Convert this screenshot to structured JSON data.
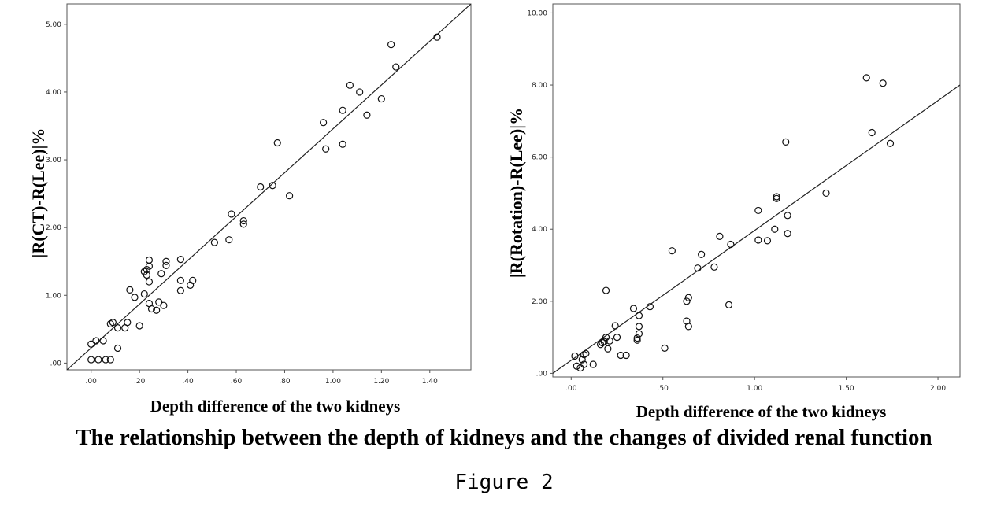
{
  "caption": "The relationship between the depth of kidneys and the changes of divided renal function",
  "figure_label": "Figure 2",
  "chart_data": [
    {
      "type": "scatter",
      "xlabel": "Depth difference of the two kidneys",
      "ylabel": "|R(CT)-R(Lee)|%",
      "xlim": [
        -0.1,
        1.57
      ],
      "ylim": [
        -0.1,
        5.3
      ],
      "xticks": [
        0,
        0.2,
        0.4,
        0.6,
        0.8,
        1.0,
        1.2,
        1.4
      ],
      "xtick_labels": [
        ".00",
        ".20",
        ".40",
        ".60",
        ".80",
        "1.00",
        "1.20",
        "1.40"
      ],
      "yticks": [
        0,
        1,
        2,
        3,
        4,
        5
      ],
      "ytick_labels": [
        ".00",
        "1.00",
        "2.00",
        "3.00",
        "4.00",
        "5.00"
      ],
      "grid": false,
      "fit_line": {
        "x1": -0.1,
        "y1": -0.1,
        "x2": 1.57,
        "y2": 5.3
      },
      "points": [
        [
          0.0,
          0.05
        ],
        [
          0.03,
          0.05
        ],
        [
          0.06,
          0.05
        ],
        [
          0.08,
          0.05
        ],
        [
          0.0,
          0.28
        ],
        [
          0.02,
          0.33
        ],
        [
          0.05,
          0.33
        ],
        [
          0.08,
          0.58
        ],
        [
          0.09,
          0.6
        ],
        [
          0.11,
          0.22
        ],
        [
          0.11,
          0.52
        ],
        [
          0.14,
          0.52
        ],
        [
          0.15,
          0.6
        ],
        [
          0.16,
          1.08
        ],
        [
          0.18,
          0.97
        ],
        [
          0.2,
          0.55
        ],
        [
          0.22,
          1.02
        ],
        [
          0.22,
          1.35
        ],
        [
          0.23,
          1.38
        ],
        [
          0.23,
          1.3
        ],
        [
          0.24,
          1.2
        ],
        [
          0.24,
          1.43
        ],
        [
          0.24,
          1.52
        ],
        [
          0.24,
          0.88
        ],
        [
          0.25,
          0.8
        ],
        [
          0.27,
          0.78
        ],
        [
          0.28,
          0.9
        ],
        [
          0.29,
          1.32
        ],
        [
          0.3,
          0.85
        ],
        [
          0.31,
          1.44
        ],
        [
          0.31,
          1.5
        ],
        [
          0.37,
          1.07
        ],
        [
          0.37,
          1.53
        ],
        [
          0.37,
          1.22
        ],
        [
          0.41,
          1.15
        ],
        [
          0.42,
          1.22
        ],
        [
          0.51,
          1.78
        ],
        [
          0.57,
          1.82
        ],
        [
          0.58,
          2.2
        ],
        [
          0.63,
          2.1
        ],
        [
          0.63,
          2.05
        ],
        [
          0.7,
          2.6
        ],
        [
          0.75,
          2.62
        ],
        [
          0.77,
          3.25
        ],
        [
          0.82,
          2.47
        ],
        [
          0.96,
          3.55
        ],
        [
          0.97,
          3.16
        ],
        [
          1.04,
          3.23
        ],
        [
          1.04,
          3.73
        ],
        [
          1.07,
          4.1
        ],
        [
          1.11,
          4.0
        ],
        [
          1.14,
          3.66
        ],
        [
          1.2,
          3.9
        ],
        [
          1.24,
          4.7
        ],
        [
          1.26,
          4.37
        ],
        [
          1.43,
          4.81
        ]
      ]
    },
    {
      "type": "scatter",
      "xlabel": "Depth difference of the two kidneys",
      "ylabel": "|R(Rotation)-R(Lee)|%",
      "xlim": [
        -0.1,
        2.12
      ],
      "ylim": [
        -0.1,
        10.25
      ],
      "xticks": [
        0,
        0.5,
        1.0,
        1.5,
        2.0
      ],
      "xtick_labels": [
        ".00",
        ".50",
        "1.00",
        "1.50",
        "2.00"
      ],
      "yticks": [
        0,
        2,
        4,
        6,
        8,
        10
      ],
      "ytick_labels": [
        ".00",
        "2.00",
        "4.00",
        "6.00",
        "8.00",
        "10.00"
      ],
      "grid": false,
      "fit_line": {
        "x1": -0.1,
        "y1": 0.0,
        "x2": 2.12,
        "y2": 8.0
      },
      "points": [
        [
          0.02,
          0.48
        ],
        [
          0.03,
          0.2
        ],
        [
          0.05,
          0.15
        ],
        [
          0.06,
          0.38
        ],
        [
          0.07,
          0.25
        ],
        [
          0.07,
          0.52
        ],
        [
          0.08,
          0.55
        ],
        [
          0.12,
          0.25
        ],
        [
          0.16,
          0.8
        ],
        [
          0.17,
          0.85
        ],
        [
          0.18,
          0.88
        ],
        [
          0.19,
          1.0
        ],
        [
          0.19,
          2.3
        ],
        [
          0.2,
          0.68
        ],
        [
          0.21,
          0.9
        ],
        [
          0.24,
          1.32
        ],
        [
          0.25,
          1.0
        ],
        [
          0.27,
          0.5
        ],
        [
          0.3,
          0.5
        ],
        [
          0.34,
          1.8
        ],
        [
          0.36,
          0.92
        ],
        [
          0.36,
          0.98
        ],
        [
          0.37,
          1.3
        ],
        [
          0.37,
          1.1
        ],
        [
          0.37,
          1.6
        ],
        [
          0.43,
          1.85
        ],
        [
          0.51,
          0.7
        ],
        [
          0.55,
          3.4
        ],
        [
          0.63,
          1.45
        ],
        [
          0.63,
          2.0
        ],
        [
          0.64,
          2.1
        ],
        [
          0.64,
          1.3
        ],
        [
          0.69,
          2.92
        ],
        [
          0.71,
          3.3
        ],
        [
          0.78,
          2.95
        ],
        [
          0.81,
          3.8
        ],
        [
          0.86,
          1.9
        ],
        [
          0.87,
          3.58
        ],
        [
          1.02,
          3.7
        ],
        [
          1.02,
          4.52
        ],
        [
          1.07,
          3.68
        ],
        [
          1.11,
          4.0
        ],
        [
          1.12,
          4.9
        ],
        [
          1.12,
          4.85
        ],
        [
          1.17,
          6.42
        ],
        [
          1.18,
          3.88
        ],
        [
          1.18,
          4.38
        ],
        [
          1.39,
          5.0
        ],
        [
          1.61,
          8.2
        ],
        [
          1.64,
          6.68
        ],
        [
          1.7,
          8.05
        ],
        [
          1.74,
          6.38
        ]
      ]
    }
  ]
}
